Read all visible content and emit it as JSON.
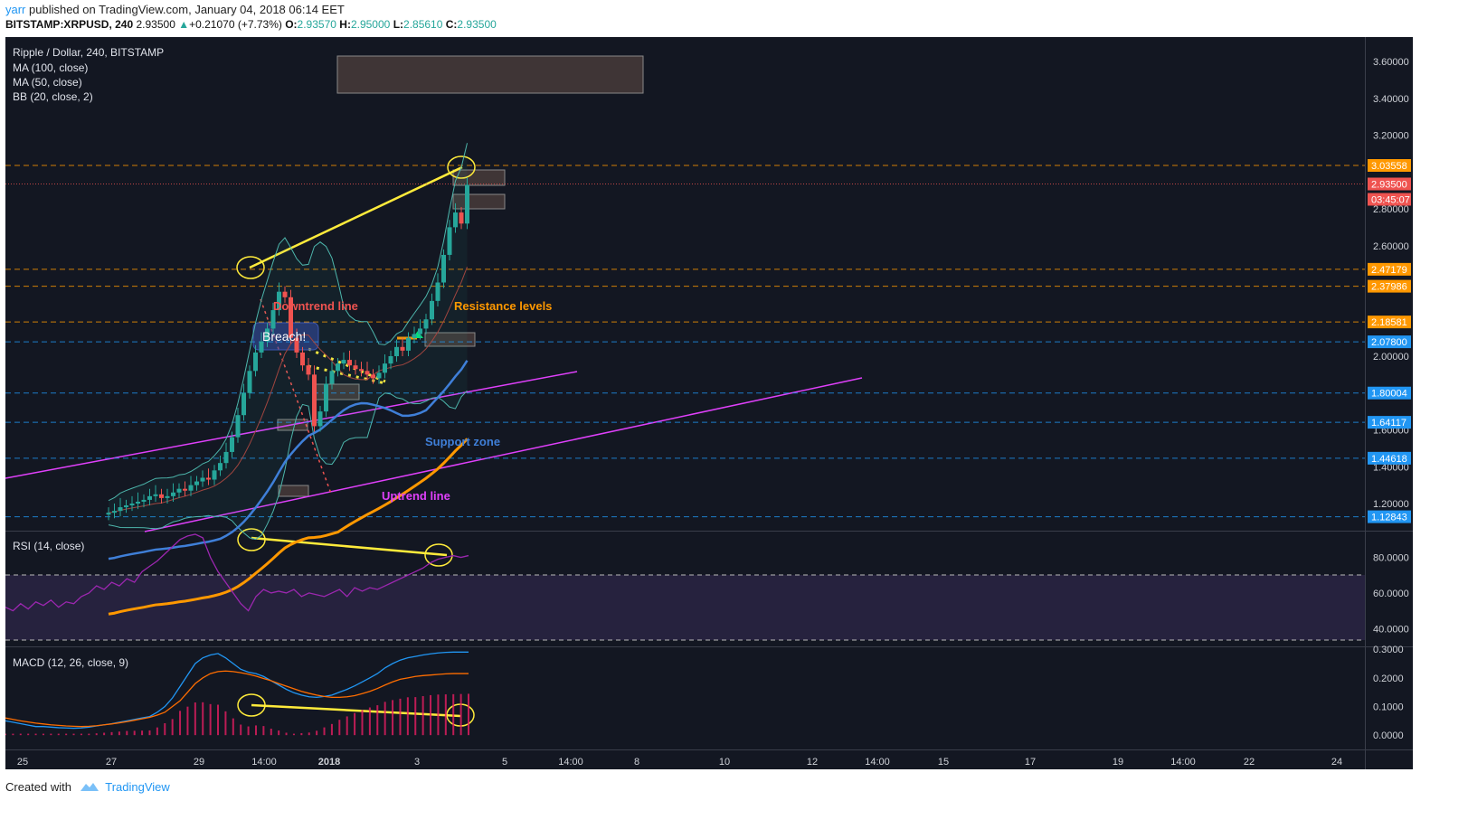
{
  "header": {
    "user": "yarr",
    "published": " published on TradingView.com, January 04, 2018 06:14 EET",
    "symbol": "BITSTAMP:XRPUSD, 240",
    "last": "2.93500",
    "change": "+0.21070 (+7.73%)",
    "o_label": "O:",
    "o": "2.93570",
    "h_label": "H:",
    "h": "2.95000",
    "l_label": "L:",
    "l": "2.85610",
    "c_label": "C:",
    "c": "2.93500"
  },
  "footer": {
    "created": "Created with",
    "brand": "TradingView"
  },
  "colors": {
    "bg": "#131722",
    "up": "#26a69a",
    "down": "#ef5350",
    "orange": "#ff9800",
    "blue": "#2196f3"
  },
  "chart_data": [
    {
      "type": "candlestick",
      "title": "Ripple / Dollar, 240, BITSTAMP",
      "legend": [
        "MA (100, close)",
        "MA (50, close)",
        "BB (20, close, 2)"
      ],
      "x_ticks": [
        "25",
        "27",
        "29",
        "14:00",
        "2018",
        "3",
        "5",
        "14:00",
        "8",
        "10",
        "12",
        "14:00",
        "15",
        "17",
        "19",
        "14:00",
        "22",
        "24"
      ],
      "y_ticks": [
        "3.60000",
        "3.40000",
        "3.20000",
        "2.80000",
        "2.60000",
        "2.00000",
        "1.60000",
        "1.40000",
        "1.20000"
      ],
      "ylim": [
        1.1,
        3.7
      ],
      "price_levels": [
        {
          "value": 3.03558,
          "label": "3.03558",
          "color": "#ff9800"
        },
        {
          "value": 2.935,
          "label": "2.93500",
          "color": "#ef5350"
        },
        {
          "value": 2.47179,
          "label": "2.47179",
          "color": "#ff9800"
        },
        {
          "value": 2.37986,
          "label": "2.37986",
          "color": "#ff9800"
        },
        {
          "value": 2.18581,
          "label": "2.18581",
          "color": "#ff9800"
        },
        {
          "value": 2.078,
          "label": "2.07800",
          "color": "#2196f3"
        },
        {
          "value": 1.80004,
          "label": "1.80004",
          "color": "#2196f3"
        },
        {
          "value": 1.64117,
          "label": "1.64117",
          "color": "#2196f3"
        },
        {
          "value": 1.44618,
          "label": "1.44618",
          "color": "#2196f3"
        },
        {
          "value": 1.12843,
          "label": "1.12843",
          "color": "#2196f3"
        }
      ],
      "countdown": "03:45:07",
      "annotations": [
        "Downtrend line",
        "Breach!",
        "Resistance levels",
        "Support zone",
        "Uptrend line"
      ],
      "closes": [
        1.15,
        1.16,
        1.18,
        1.19,
        1.2,
        1.21,
        1.22,
        1.24,
        1.25,
        1.23,
        1.24,
        1.26,
        1.28,
        1.27,
        1.3,
        1.32,
        1.34,
        1.33,
        1.38,
        1.42,
        1.48,
        1.56,
        1.68,
        1.8,
        1.92,
        2.02,
        2.08,
        2.15,
        2.25,
        2.35,
        2.32,
        2.1,
        2.02,
        1.95,
        1.9,
        1.62,
        1.7,
        1.85,
        1.92,
        1.96,
        1.98,
        1.95,
        1.93,
        1.92,
        1.9,
        1.88,
        1.91,
        1.96,
        2.0,
        2.05,
        2.03,
        2.1,
        2.12,
        2.15,
        2.2,
        2.3,
        2.4,
        2.55,
        2.7,
        2.78,
        2.72,
        2.93
      ]
    },
    {
      "type": "line",
      "title": "RSI (14, close)",
      "y_ticks": [
        "80.0000",
        "60.0000",
        "40.0000"
      ],
      "ylim": [
        30,
        95
      ],
      "bands": [
        70,
        30
      ],
      "values": [
        52,
        50,
        54,
        51,
        55,
        53,
        56,
        52,
        55,
        54,
        58,
        60,
        64,
        62,
        66,
        64,
        68,
        66,
        72,
        75,
        78,
        82,
        86,
        90,
        92,
        93,
        91,
        80,
        72,
        66,
        60,
        54,
        50,
        58,
        62,
        60,
        61,
        60,
        62,
        58,
        60,
        59,
        58,
        60,
        62,
        58,
        63,
        61,
        63,
        62,
        64,
        66,
        68,
        70,
        72,
        74,
        77,
        79,
        80,
        81,
        80,
        81
      ]
    },
    {
      "type": "line",
      "title": "MACD (12, 26, close, 9)",
      "y_ticks": [
        "0.3000",
        "0.2000",
        "0.1000",
        "0.0000"
      ],
      "ylim": [
        -0.05,
        0.31
      ],
      "series": [
        {
          "values": [
            0.05,
            0.045,
            0.04,
            0.035,
            0.03,
            0.03,
            0.028,
            0.026,
            0.025,
            0.024,
            0.025,
            0.028,
            0.032,
            0.036,
            0.04,
            0.045,
            0.05,
            0.055,
            0.06,
            0.065,
            0.08,
            0.1,
            0.13,
            0.17,
            0.21,
            0.25,
            0.27,
            0.28,
            0.285,
            0.27,
            0.25,
            0.23,
            0.22,
            0.215,
            0.205,
            0.19,
            0.175,
            0.16,
            0.148,
            0.14,
            0.134,
            0.132,
            0.135,
            0.14,
            0.15,
            0.16,
            0.172,
            0.186,
            0.2,
            0.215,
            0.235,
            0.25,
            0.262,
            0.27,
            0.275,
            0.28,
            0.284,
            0.287,
            0.289,
            0.29,
            0.29,
            0.29
          ]
        },
        {
          "values": [
            0.06,
            0.055,
            0.05,
            0.046,
            0.042,
            0.039,
            0.036,
            0.034,
            0.032,
            0.031,
            0.03,
            0.031,
            0.033,
            0.036,
            0.039,
            0.043,
            0.047,
            0.052,
            0.057,
            0.062,
            0.07,
            0.08,
            0.1,
            0.12,
            0.15,
            0.18,
            0.2,
            0.215,
            0.222,
            0.224,
            0.222,
            0.218,
            0.213,
            0.206,
            0.198,
            0.19,
            0.18,
            0.171,
            0.162,
            0.153,
            0.146,
            0.14,
            0.135,
            0.132,
            0.132,
            0.134,
            0.138,
            0.145,
            0.153,
            0.163,
            0.175,
            0.186,
            0.195,
            0.2,
            0.205,
            0.208,
            0.21,
            0.212,
            0.214,
            0.215,
            0.215,
            0.215
          ]
        }
      ]
    }
  ]
}
